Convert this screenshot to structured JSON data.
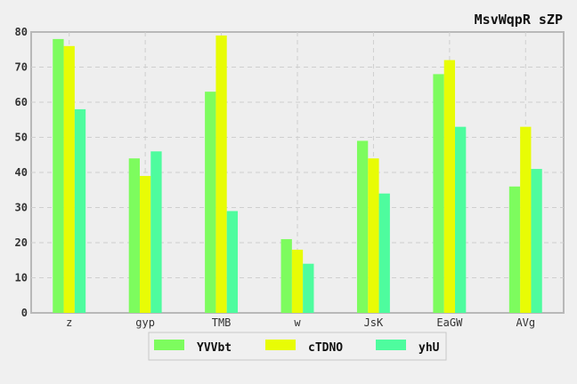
{
  "chart_data": {
    "type": "bar",
    "title": "MsvWqpR sZP",
    "xlabel": "",
    "ylabel": "",
    "categories": [
      "z",
      "gyp",
      "TMB",
      "w",
      "JsK",
      "EaGW",
      "AVg"
    ],
    "series": [
      {
        "name": "YVVbt",
        "color": "#7dfc5e",
        "values": [
          78,
          44,
          63,
          21,
          49,
          68,
          36
        ]
      },
      {
        "name": "cTDNO",
        "color": "#e8fc05",
        "values": [
          76,
          39,
          79,
          18,
          44,
          72,
          53
        ]
      },
      {
        "name": "yhU",
        "color": "#4efc9e",
        "values": [
          58,
          46,
          29,
          14,
          34,
          53,
          41
        ]
      }
    ],
    "ylim": [
      0,
      80
    ],
    "yticks": [
      0,
      10,
      20,
      30,
      40,
      50,
      60,
      70,
      80
    ],
    "grid": true,
    "legend_position": "bottom-center"
  }
}
